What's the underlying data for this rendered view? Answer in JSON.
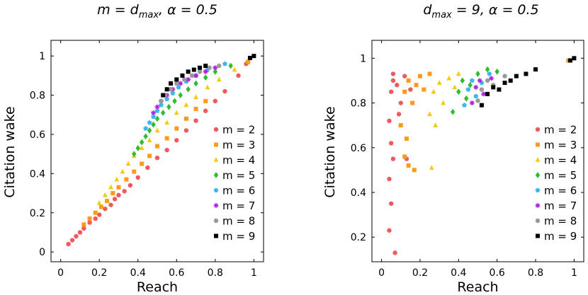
{
  "chart_data": [
    {
      "type": "scatter",
      "title": "m = d_max, α = 0.5",
      "title_parts": {
        "m": "m",
        "eq": " = ",
        "d": "d",
        "sub": "max",
        "rest": ", α = 0.5"
      },
      "xlabel": "Reach",
      "ylabel": "Citation wake",
      "xlim": [
        -0.05,
        1.05
      ],
      "ylim": [
        -0.05,
        1.08
      ],
      "xticks": [
        0,
        0.2,
        0.4,
        0.6,
        0.8,
        1
      ],
      "xtick_labels": [
        "0",
        "0.2",
        "0.4",
        "0.6",
        "0.8",
        "1"
      ],
      "yticks": [
        0,
        0.2,
        0.4,
        0.6,
        0.8,
        1
      ],
      "ytick_labels": [
        "0",
        "0.2",
        "0.4",
        "0.6",
        "0.8",
        "1"
      ],
      "grid": false,
      "legend_position": "bottom-right",
      "series": [
        {
          "name": "m = 2",
          "color": "#f05a5a",
          "marker": "circle",
          "points": [
            [
              0.04,
              0.04
            ],
            [
              0.06,
              0.06
            ],
            [
              0.08,
              0.08
            ],
            [
              0.1,
              0.1
            ],
            [
              0.12,
              0.12
            ],
            [
              0.15,
              0.15
            ],
            [
              0.18,
              0.17
            ],
            [
              0.2,
              0.19
            ],
            [
              0.23,
              0.22
            ],
            [
              0.26,
              0.24
            ],
            [
              0.28,
              0.27
            ],
            [
              0.3,
              0.29
            ],
            [
              0.33,
              0.31
            ],
            [
              0.36,
              0.34
            ],
            [
              0.4,
              0.38
            ],
            [
              0.45,
              0.43
            ],
            [
              0.5,
              0.48
            ],
            [
              0.55,
              0.52
            ],
            [
              0.6,
              0.57
            ],
            [
              0.65,
              0.62
            ],
            [
              0.7,
              0.67
            ],
            [
              0.75,
              0.72
            ],
            [
              0.8,
              0.77
            ],
            [
              0.85,
              0.82
            ],
            [
              0.92,
              0.9
            ],
            [
              0.96,
              0.96
            ]
          ]
        },
        {
          "name": "m = 3",
          "color": "#ff9a1a",
          "marker": "square",
          "points": [
            [
              0.12,
              0.14
            ],
            [
              0.15,
              0.17
            ],
            [
              0.18,
              0.2
            ],
            [
              0.21,
              0.23
            ],
            [
              0.24,
              0.26
            ],
            [
              0.27,
              0.3
            ],
            [
              0.3,
              0.33
            ],
            [
              0.34,
              0.37
            ],
            [
              0.38,
              0.41
            ],
            [
              0.42,
              0.45
            ],
            [
              0.46,
              0.49
            ],
            [
              0.5,
              0.54
            ],
            [
              0.55,
              0.58
            ],
            [
              0.6,
              0.63
            ],
            [
              0.65,
              0.68
            ],
            [
              0.7,
              0.73
            ],
            [
              0.75,
              0.77
            ],
            [
              0.97,
              0.97
            ]
          ]
        },
        {
          "name": "m = 4",
          "color": "#f2cc0c",
          "marker": "triangle",
          "points": [
            [
              0.2,
              0.25
            ],
            [
              0.23,
              0.29
            ],
            [
              0.26,
              0.33
            ],
            [
              0.29,
              0.37
            ],
            [
              0.32,
              0.41
            ],
            [
              0.35,
              0.45
            ],
            [
              0.38,
              0.49
            ],
            [
              0.42,
              0.53
            ],
            [
              0.46,
              0.57
            ],
            [
              0.5,
              0.62
            ],
            [
              0.55,
              0.66
            ],
            [
              0.6,
              0.71
            ],
            [
              0.65,
              0.75
            ],
            [
              0.7,
              0.79
            ],
            [
              0.76,
              0.84
            ],
            [
              0.82,
              0.88
            ],
            [
              0.9,
              0.93
            ]
          ]
        },
        {
          "name": "m = 5",
          "color": "#2ebd2e",
          "marker": "diamond",
          "points": [
            [
              0.38,
              0.5
            ],
            [
              0.4,
              0.53
            ],
            [
              0.42,
              0.56
            ],
            [
              0.44,
              0.59
            ],
            [
              0.46,
              0.62
            ],
            [
              0.48,
              0.65
            ],
            [
              0.5,
              0.68
            ],
            [
              0.53,
              0.71
            ],
            [
              0.56,
              0.74
            ],
            [
              0.59,
              0.77
            ],
            [
              0.62,
              0.8
            ],
            [
              0.66,
              0.83
            ],
            [
              0.7,
              0.86
            ],
            [
              0.75,
              0.89
            ],
            [
              0.8,
              0.92
            ],
            [
              0.88,
              0.95
            ]
          ]
        },
        {
          "name": "m = 6",
          "color": "#3db7ee",
          "marker": "pentagon",
          "points": [
            [
              0.44,
              0.63
            ],
            [
              0.46,
              0.66
            ],
            [
              0.48,
              0.69
            ],
            [
              0.5,
              0.72
            ],
            [
              0.52,
              0.75
            ],
            [
              0.55,
              0.78
            ],
            [
              0.58,
              0.81
            ],
            [
              0.61,
              0.84
            ],
            [
              0.65,
              0.87
            ],
            [
              0.7,
              0.9
            ],
            [
              0.76,
              0.93
            ],
            [
              0.85,
              0.96
            ]
          ]
        },
        {
          "name": "m = 7",
          "color": "#b020e6",
          "marker": "star",
          "points": [
            [
              0.48,
              0.71
            ],
            [
              0.5,
              0.74
            ],
            [
              0.52,
              0.77
            ],
            [
              0.55,
              0.8
            ],
            [
              0.58,
              0.83
            ],
            [
              0.62,
              0.86
            ],
            [
              0.66,
              0.88
            ],
            [
              0.7,
              0.9
            ],
            [
              0.75,
              0.92
            ],
            [
              0.8,
              0.94
            ]
          ]
        },
        {
          "name": "m = 8",
          "color": "#999999",
          "marker": "circle",
          "points": [
            [
              0.52,
              0.77
            ],
            [
              0.54,
              0.8
            ],
            [
              0.57,
              0.83
            ],
            [
              0.6,
              0.86
            ],
            [
              0.64,
              0.88
            ],
            [
              0.68,
              0.9
            ],
            [
              0.72,
              0.92
            ],
            [
              0.77,
              0.94
            ],
            [
              0.82,
              0.95
            ]
          ]
        },
        {
          "name": "m = 9",
          "color": "#000000",
          "marker": "square",
          "points": [
            [
              0.53,
              0.8
            ],
            [
              0.55,
              0.83
            ],
            [
              0.57,
              0.86
            ],
            [
              0.6,
              0.88
            ],
            [
              0.63,
              0.9
            ],
            [
              0.66,
              0.92
            ],
            [
              0.69,
              0.93
            ],
            [
              0.72,
              0.94
            ],
            [
              0.75,
              0.95
            ],
            [
              0.98,
              0.99
            ],
            [
              1.0,
              1.0
            ]
          ]
        }
      ]
    },
    {
      "type": "scatter",
      "title": "d_max = 9, α = 0.5",
      "title_parts": {
        "d": "d",
        "sub": "max",
        "rest": " = 9, α = 0.5"
      },
      "xlabel": "Reach",
      "ylabel": "Citation wake",
      "xlim": [
        -0.05,
        1.05
      ],
      "ylim": [
        0.09,
        1.08
      ],
      "xticks": [
        0,
        0.2,
        0.4,
        0.6,
        0.8,
        1
      ],
      "xtick_labels": [
        "0",
        "0.2",
        "0.4",
        "0.6",
        "0.8",
        "1"
      ],
      "yticks": [
        0.2,
        0.4,
        0.6,
        0.8,
        1
      ],
      "ytick_labels": [
        "0.2",
        "0.4",
        "0.6",
        "0.8",
        "1"
      ],
      "grid": false,
      "legend_position": "bottom-right",
      "series": [
        {
          "name": "m = 2",
          "color": "#f05a5a",
          "marker": "circle",
          "points": [
            [
              0.04,
              0.72
            ],
            [
              0.05,
              0.85
            ],
            [
              0.06,
              0.9
            ],
            [
              0.08,
              0.88
            ],
            [
              0.1,
              0.8
            ],
            [
              0.12,
              0.92
            ],
            [
              0.15,
              0.86
            ],
            [
              0.05,
              0.62
            ],
            [
              0.06,
              0.55
            ],
            [
              0.04,
              0.46
            ],
            [
              0.05,
              0.35
            ],
            [
              0.04,
              0.23
            ],
            [
              0.07,
              0.13
            ],
            [
              0.06,
              0.93
            ],
            [
              0.09,
              0.75
            ],
            [
              0.13,
              0.55
            ]
          ]
        },
        {
          "name": "m = 3",
          "color": "#ff9a1a",
          "marker": "square",
          "points": [
            [
              0.1,
              0.7
            ],
            [
              0.12,
              0.85
            ],
            [
              0.14,
              0.9
            ],
            [
              0.16,
              0.8
            ],
            [
              0.18,
              0.88
            ],
            [
              0.2,
              0.92
            ],
            [
              0.22,
              0.86
            ],
            [
              0.25,
              0.93
            ],
            [
              0.13,
              0.64
            ],
            [
              0.12,
              0.56
            ],
            [
              0.14,
              0.52
            ],
            [
              0.17,
              0.5
            ],
            [
              0.97,
              0.99
            ]
          ]
        },
        {
          "name": "m = 4",
          "color": "#f2cc0c",
          "marker": "triangle",
          "points": [
            [
              0.25,
              0.75
            ],
            [
              0.27,
              0.85
            ],
            [
              0.3,
              0.89
            ],
            [
              0.32,
              0.8
            ],
            [
              0.35,
              0.91
            ],
            [
              0.38,
              0.87
            ],
            [
              0.4,
              0.93
            ],
            [
              0.28,
              0.7
            ],
            [
              0.26,
              0.51
            ]
          ]
        },
        {
          "name": "m = 5",
          "color": "#2ebd2e",
          "marker": "diamond",
          "points": [
            [
              0.37,
              0.76
            ],
            [
              0.4,
              0.85
            ],
            [
              0.42,
              0.9
            ],
            [
              0.44,
              0.82
            ],
            [
              0.46,
              0.88
            ],
            [
              0.5,
              0.93
            ],
            [
              0.55,
              0.95
            ],
            [
              0.6,
              0.94
            ]
          ]
        },
        {
          "name": "m = 6",
          "color": "#3db7ee",
          "marker": "pentagon",
          "points": [
            [
              0.43,
              0.79
            ],
            [
              0.45,
              0.86
            ],
            [
              0.47,
              0.9
            ],
            [
              0.49,
              0.83
            ],
            [
              0.52,
              0.89
            ],
            [
              0.56,
              0.93
            ]
          ]
        },
        {
          "name": "m = 7",
          "color": "#b020e6",
          "marker": "star",
          "points": [
            [
              0.47,
              0.8
            ],
            [
              0.49,
              0.87
            ],
            [
              0.51,
              0.9
            ],
            [
              0.53,
              0.84
            ],
            [
              0.57,
              0.91
            ]
          ]
        },
        {
          "name": "m = 8",
          "color": "#999999",
          "marker": "circle",
          "points": [
            [
              0.5,
              0.81
            ],
            [
              0.52,
              0.86
            ],
            [
              0.55,
              0.9
            ],
            [
              0.58,
              0.88
            ],
            [
              0.64,
              0.92
            ]
          ]
        },
        {
          "name": "m = 9",
          "color": "#000000",
          "marker": "square",
          "points": [
            [
              0.52,
              0.79
            ],
            [
              0.55,
              0.84
            ],
            [
              0.58,
              0.87
            ],
            [
              0.61,
              0.86
            ],
            [
              0.64,
              0.89
            ],
            [
              0.67,
              0.9
            ],
            [
              0.7,
              0.92
            ],
            [
              0.75,
              0.93
            ],
            [
              0.8,
              0.95
            ],
            [
              0.98,
              0.99
            ],
            [
              1.0,
              1.0
            ]
          ]
        }
      ]
    }
  ]
}
